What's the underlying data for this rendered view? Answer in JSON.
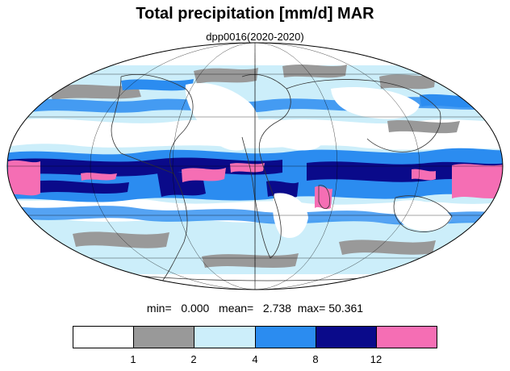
{
  "title": "Total precipitation [mm/d] MAR",
  "subtitle": "dpp0016(2020-2020)",
  "stats": {
    "min_label": "min=",
    "min_value": "0.000",
    "mean_label": "mean=",
    "mean_value": "2.738",
    "max_label": "max=",
    "max_value": "50.361"
  },
  "colors": {
    "c0": "#ffffff",
    "c1": "#999999",
    "c2": "#cceefa",
    "c3": "#2b8cf0",
    "c4": "#0a0a8a",
    "c5": "#f56eb4",
    "land_outline": "#333333",
    "grid": "#000000"
  },
  "legend": {
    "colors": [
      "#ffffff",
      "#999999",
      "#cceefa",
      "#2b8cf0",
      "#0a0a8a",
      "#f56eb4"
    ],
    "ticks": [
      "1",
      "2",
      "4",
      "8",
      "12"
    ]
  }
}
